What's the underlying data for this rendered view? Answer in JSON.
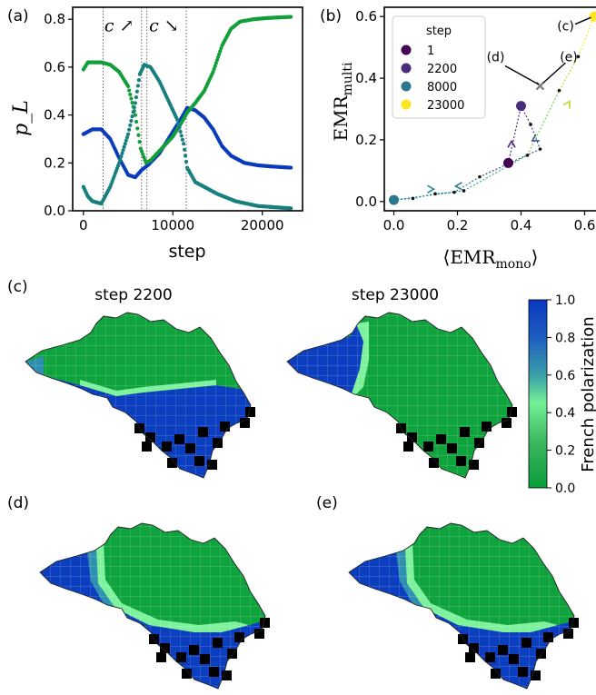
{
  "panel_labels": [
    "(a)",
    "(b)",
    "(c)",
    "(d)",
    "(e)"
  ],
  "panel_a": {
    "ylabel": "p_L",
    "xlabel": "step",
    "annotations": [
      "c ↗",
      "c ↘"
    ]
  },
  "panel_b": {
    "ylabel": "EMR_multi",
    "xlabel": "⟨EMR_mono⟩",
    "legend_title": "step",
    "callouts": [
      "(c)",
      "(d)",
      "(e)"
    ]
  },
  "maps": {
    "title_left": "step 2200",
    "title_right": "step 23000",
    "colorbar_label": "French polarization"
  },
  "chart_data": [
    {
      "type": "line",
      "xlabel": "step",
      "ylabel": "p_L",
      "xlim": [
        -1200,
        24500
      ],
      "ylim": [
        0,
        0.85
      ],
      "xticks": [
        0,
        10000,
        20000
      ],
      "xtick_labels": [
        "0",
        "10000",
        "20000"
      ],
      "yticks": [
        0.0,
        0.2,
        0.4,
        0.6,
        0.8
      ],
      "ytick_labels": [
        "0.0",
        "0.2",
        "0.4",
        "0.6",
        "0.8"
      ],
      "vlines": [
        2200,
        6500,
        7100,
        11500
      ],
      "annotations": [
        {
          "text": "c ↗",
          "x": 4000,
          "y": 0.75
        },
        {
          "text": "c ↘",
          "x": 9000,
          "y": 0.75
        }
      ],
      "series": [
        {
          "color": "#0a3bbd",
          "x": [
            0,
            500,
            1000,
            2000,
            3000,
            4000,
            5000,
            5800,
            6500,
            7200,
            8500,
            10000,
            11000,
            11600,
            12500,
            13500,
            14500,
            15500,
            16500,
            18000,
            19500,
            21000,
            23200
          ],
          "y": [
            0.32,
            0.33,
            0.34,
            0.34,
            0.3,
            0.22,
            0.15,
            0.14,
            0.17,
            0.19,
            0.24,
            0.33,
            0.39,
            0.43,
            0.42,
            0.39,
            0.34,
            0.27,
            0.23,
            0.2,
            0.19,
            0.185,
            0.18
          ]
        },
        {
          "color": "#129e38",
          "x": [
            0,
            500,
            1000,
            2000,
            3000,
            4000,
            5000,
            5800,
            6400,
            7000,
            7500,
            8500,
            10000,
            11000,
            11600,
            12500,
            13500,
            14500,
            15500,
            16500,
            17500,
            19000,
            20500,
            23200
          ],
          "y": [
            0.59,
            0.62,
            0.62,
            0.62,
            0.61,
            0.58,
            0.52,
            0.4,
            0.26,
            0.2,
            0.21,
            0.25,
            0.31,
            0.37,
            0.41,
            0.45,
            0.5,
            0.58,
            0.69,
            0.76,
            0.79,
            0.8,
            0.805,
            0.81
          ]
        },
        {
          "color": "#17807e",
          "x": [
            0,
            500,
            1000,
            2000,
            3000,
            4000,
            5000,
            5800,
            6300,
            6800,
            7500,
            8500,
            9500,
            10500,
            11200,
            11600,
            12500,
            13500,
            15000,
            17000,
            19500,
            23200
          ],
          "y": [
            0.1,
            0.06,
            0.04,
            0.03,
            0.1,
            0.2,
            0.32,
            0.45,
            0.57,
            0.61,
            0.6,
            0.54,
            0.46,
            0.38,
            0.28,
            0.18,
            0.12,
            0.1,
            0.07,
            0.04,
            0.02,
            0.01
          ]
        }
      ]
    },
    {
      "type": "scatter",
      "xlabel": "⟨EMR_mono⟩",
      "ylabel": "EMR_multi",
      "xlim": [
        -0.03,
        0.65
      ],
      "ylim": [
        -0.03,
        0.63
      ],
      "xticks": [
        0.0,
        0.2,
        0.4,
        0.6
      ],
      "xtick_labels": [
        "0.0",
        "0.2",
        "0.4",
        "0.6"
      ],
      "yticks": [
        0.0,
        0.2,
        0.4,
        0.6
      ],
      "ytick_labels": [
        "0.0",
        "0.2",
        "0.4",
        "0.6"
      ],
      "legend": {
        "title": "step",
        "placement": "upper-left"
      },
      "points": [
        {
          "label": "1",
          "x": 0.36,
          "y": 0.125,
          "color": "#440154"
        },
        {
          "label": "2200",
          "x": 0.4,
          "y": 0.31,
          "color": "#472d7b"
        },
        {
          "label": "8000",
          "x": 0.0,
          "y": 0.005,
          "color": "#2a788e"
        },
        {
          "label": "23000",
          "x": 0.63,
          "y": 0.6,
          "color": "#fde725"
        }
      ],
      "center_marker": {
        "x": 0.46,
        "y": 0.375,
        "color": "#808080"
      },
      "trajectory_points": [
        [
          0.36,
          0.125
        ],
        [
          0.4,
          0.31
        ],
        [
          0.43,
          0.25
        ],
        [
          0.46,
          0.17
        ],
        [
          0.27,
          0.08
        ],
        [
          0.19,
          0.03
        ],
        [
          0.13,
          0.025
        ],
        [
          0.06,
          0.01
        ],
        [
          0.0,
          0.005
        ],
        [
          0.22,
          0.035
        ],
        [
          0.42,
          0.15
        ],
        [
          0.52,
          0.36
        ],
        [
          0.58,
          0.47
        ],
        [
          0.63,
          0.6
        ]
      ],
      "callouts": [
        {
          "text": "(c)",
          "x": 0.54,
          "y": 0.57
        },
        {
          "text": "(d)",
          "x": 0.32,
          "y": 0.47
        },
        {
          "text": "(e)",
          "x": 0.55,
          "y": 0.47
        }
      ]
    },
    {
      "type": "heatmap",
      "colorbar": {
        "label": "French polarization",
        "ticks": [
          "0.0",
          "0.2",
          "0.4",
          "0.6",
          "0.8",
          "1.0"
        ],
        "colors": [
          "#0a9c3a",
          "#4dc971",
          "#74f096",
          "#2e8fb0",
          "#1a5cc4",
          "#0a37c2"
        ]
      }
    }
  ]
}
